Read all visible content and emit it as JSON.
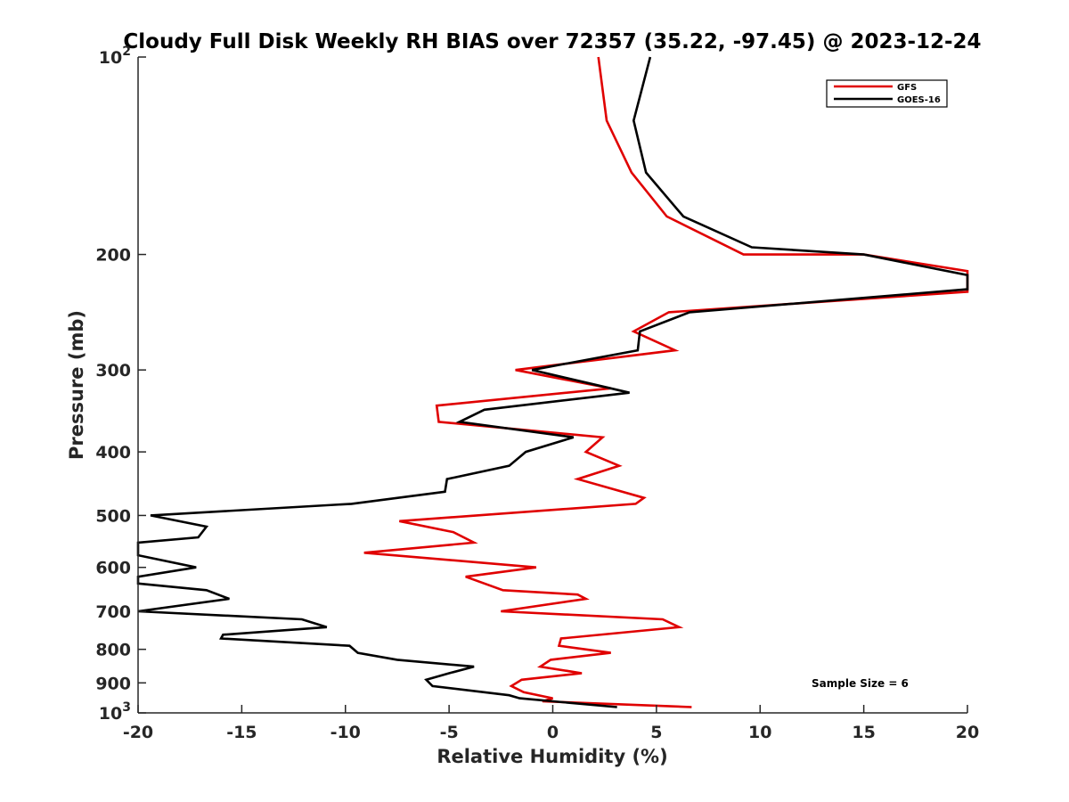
{
  "chart_data": {
    "type": "line",
    "title": "Cloudy Full Disk Weekly RH BIAS over 72357 (35.22, -97.45) @ 2023-12-24",
    "xlabel": "Relative Humidity (%)",
    "ylabel": "Pressure (mb)",
    "xlim": [
      -20,
      20
    ],
    "ylim": [
      100,
      1000
    ],
    "yscale": "log",
    "y_reversed": true,
    "grid": false,
    "legend_position": "top-right",
    "xticks": [
      -20,
      -15,
      -10,
      -5,
      0,
      5,
      10,
      15,
      20
    ],
    "xtick_labels": [
      "-20",
      "-15",
      "-10",
      "-5",
      "0",
      "5",
      "10",
      "15",
      "20"
    ],
    "yticks": [
      100,
      200,
      300,
      400,
      500,
      600,
      700,
      800,
      900,
      1000
    ],
    "ytick_labels": [
      {
        "base": "10",
        "exp": "2"
      },
      {
        "base": "200",
        "exp": ""
      },
      {
        "base": "300",
        "exp": ""
      },
      {
        "base": "400",
        "exp": ""
      },
      {
        "base": "500",
        "exp": ""
      },
      {
        "base": "600",
        "exp": ""
      },
      {
        "base": "700",
        "exp": ""
      },
      {
        "base": "800",
        "exp": ""
      },
      {
        "base": "900",
        "exp": ""
      },
      {
        "base": "10",
        "exp": "3"
      }
    ],
    "annotation": "Sample Size = 6",
    "series": [
      {
        "name": "GFS",
        "color": "#e00000",
        "points": [
          [
            2.2,
            100
          ],
          [
            2.6,
            125
          ],
          [
            3.8,
            150
          ],
          [
            5.5,
            175
          ],
          [
            9.2,
            200
          ],
          [
            15.0,
            200
          ],
          [
            20.0,
            212
          ],
          [
            20.0,
            225
          ],
          [
            20.0,
            228
          ],
          [
            5.6,
            245
          ],
          [
            3.9,
            262
          ],
          [
            5.9,
            280
          ],
          [
            -1.8,
            300
          ],
          [
            2.8,
            320
          ],
          [
            -5.6,
            340
          ],
          [
            -5.5,
            360
          ],
          [
            2.4,
            380
          ],
          [
            1.6,
            400
          ],
          [
            3.2,
            420
          ],
          [
            1.2,
            440
          ],
          [
            4.4,
            470
          ],
          [
            4.0,
            480
          ],
          [
            -7.4,
            510
          ],
          [
            -4.8,
            530
          ],
          [
            -3.8,
            550
          ],
          [
            -9.1,
            570
          ],
          [
            -0.8,
            600
          ],
          [
            -4.2,
            620
          ],
          [
            -2.4,
            650
          ],
          [
            1.2,
            660
          ],
          [
            1.6,
            670
          ],
          [
            -2.5,
            700
          ],
          [
            5.3,
            720
          ],
          [
            6.1,
            740
          ],
          [
            0.4,
            770
          ],
          [
            0.3,
            790
          ],
          [
            2.8,
            810
          ],
          [
            -0.1,
            830
          ],
          [
            -0.6,
            850
          ],
          [
            1.4,
            870
          ],
          [
            -1.5,
            890
          ],
          [
            -2.0,
            910
          ],
          [
            -1.4,
            930
          ],
          [
            0.0,
            950
          ],
          [
            -0.5,
            960
          ],
          [
            6.7,
            980
          ]
        ]
      },
      {
        "name": "GOES-16",
        "color": "#000000",
        "points": [
          [
            4.7,
            100
          ],
          [
            3.9,
            125
          ],
          [
            4.5,
            150
          ],
          [
            6.3,
            175
          ],
          [
            9.6,
            195
          ],
          [
            15.0,
            200
          ],
          [
            20.0,
            215
          ],
          [
            20.0,
            226
          ],
          [
            6.6,
            245
          ],
          [
            4.2,
            262
          ],
          [
            4.1,
            280
          ],
          [
            -1.0,
            300
          ],
          [
            3.7,
            325
          ],
          [
            -3.3,
            345
          ],
          [
            -4.5,
            360
          ],
          [
            1.0,
            380
          ],
          [
            -1.3,
            400
          ],
          [
            -2.1,
            420
          ],
          [
            -5.1,
            440
          ],
          [
            -5.2,
            460
          ],
          [
            -9.7,
            480
          ],
          [
            -19.4,
            500
          ],
          [
            -16.7,
            520
          ],
          [
            -17.1,
            540
          ],
          [
            -20.0,
            550
          ],
          [
            -20.0,
            575
          ],
          [
            -17.2,
            600
          ],
          [
            -20.0,
            620
          ],
          [
            -20.0,
            635
          ],
          [
            -16.7,
            650
          ],
          [
            -15.6,
            670
          ],
          [
            -20.0,
            700
          ],
          [
            -12.1,
            720
          ],
          [
            -10.9,
            740
          ],
          [
            -15.9,
            760
          ],
          [
            -16.0,
            770
          ],
          [
            -9.8,
            790
          ],
          [
            -9.4,
            810
          ],
          [
            -7.5,
            830
          ],
          [
            -3.8,
            850
          ],
          [
            -5.0,
            870
          ],
          [
            -6.1,
            890
          ],
          [
            -5.8,
            910
          ],
          [
            -2.1,
            940
          ],
          [
            -1.6,
            950
          ],
          [
            3.1,
            980
          ]
        ]
      }
    ]
  }
}
